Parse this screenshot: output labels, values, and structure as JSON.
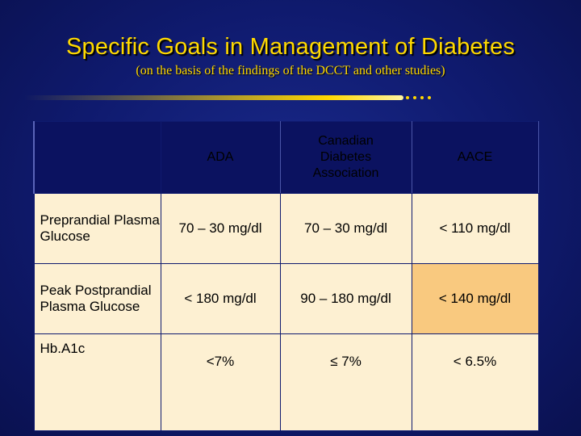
{
  "slide": {
    "title": "Specific Goals in Management of Diabetes",
    "subtitle": "(on the basis of the findings of the DCCT and other studies)"
  },
  "table": {
    "headers": [
      "",
      "ADA",
      "Canadian Diabetes Association",
      "AACE"
    ],
    "rows": [
      {
        "label": "Preprandial Plasma Glucose",
        "ada": "70 – 30 mg/dl",
        "cda": "70 – 30 mg/dl",
        "aace": "< 110 mg/dl"
      },
      {
        "label": "Peak Postprandial Plasma Glucose",
        "ada": "< 180 mg/dl",
        "cda": "90 – 180 mg/dl",
        "aace": "< 140 mg/dl"
      },
      {
        "label": "Hb.A1c",
        "ada": "<7%",
        "cda": "≤ 7%",
        "aace": "< 6.5%"
      }
    ]
  },
  "colors": {
    "title": "#ffd900",
    "background": "#0f1a6e",
    "cell_light": "#fdf0d2",
    "cell_dark": "#f9c97f"
  }
}
